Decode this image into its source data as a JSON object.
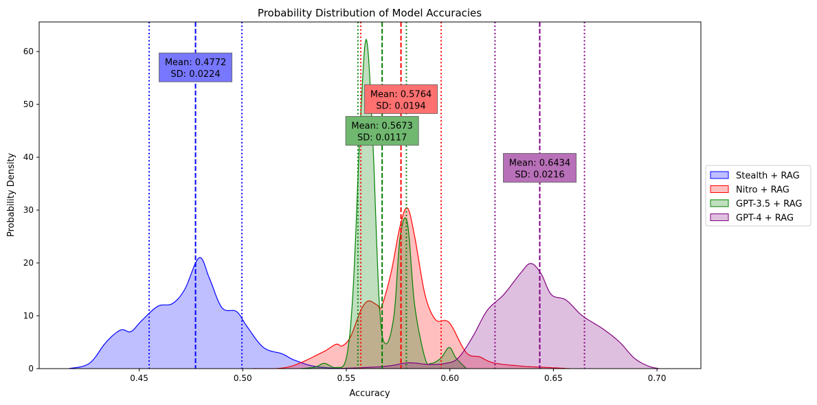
{
  "chart_data": {
    "type": "area",
    "title": "Probability Distribution of Model Accuracies",
    "xlabel": "Accuracy",
    "ylabel": "Probability Density",
    "xlim": [
      0.4017,
      0.7212
    ],
    "ylim": [
      0,
      65.6
    ],
    "xticks": [
      "0.45",
      "0.50",
      "0.55",
      "0.60",
      "0.65",
      "0.70"
    ],
    "yticks": [
      "0",
      "10",
      "20",
      "30",
      "40",
      "50",
      "60"
    ],
    "grid": false,
    "legend_position": "right-outside",
    "series": [
      {
        "name": "Stealth + RAG",
        "color": "#0000ff",
        "fill": "#bfbfff",
        "mean_label": "Mean: 0.4772",
        "sd_label": "SD: 0.0224",
        "mean": 0.4772,
        "sd": 0.0224,
        "box_color": "#7777ff",
        "points": [
          [
            0.416,
            0
          ],
          [
            0.426,
            1
          ],
          [
            0.434,
            5
          ],
          [
            0.441,
            7.3
          ],
          [
            0.446,
            7
          ],
          [
            0.451,
            9
          ],
          [
            0.459,
            11.8
          ],
          [
            0.466,
            12.3
          ],
          [
            0.472,
            15
          ],
          [
            0.479,
            21
          ],
          [
            0.484,
            17
          ],
          [
            0.49,
            11.5
          ],
          [
            0.497,
            10.8
          ],
          [
            0.502,
            8
          ],
          [
            0.51,
            4
          ],
          [
            0.519,
            2.8
          ],
          [
            0.525,
            1.6
          ],
          [
            0.535,
            0.4
          ],
          [
            0.548,
            0
          ]
        ]
      },
      {
        "name": "Nitro + RAG",
        "color": "#ff0000",
        "fill": "#ffbfbf",
        "mean_label": "Mean: 0.5764",
        "sd_label": "SD: 0.0194",
        "mean": 0.5764,
        "sd": 0.0194,
        "box_color": "#ff7070",
        "points": [
          [
            0.505,
            0
          ],
          [
            0.522,
            0.3
          ],
          [
            0.538,
            3
          ],
          [
            0.545,
            4.6
          ],
          [
            0.548,
            4.3
          ],
          [
            0.552,
            6
          ],
          [
            0.557,
            11
          ],
          [
            0.5606,
            12.8
          ],
          [
            0.565,
            12
          ],
          [
            0.567,
            11.7
          ],
          [
            0.5715,
            18
          ],
          [
            0.576,
            27
          ],
          [
            0.5795,
            30.4
          ],
          [
            0.583,
            25
          ],
          [
            0.588,
            14
          ],
          [
            0.593,
            9.3
          ],
          [
            0.598,
            9.1
          ],
          [
            0.601,
            8
          ],
          [
            0.608,
            3
          ],
          [
            0.6146,
            2.2
          ],
          [
            0.621,
            1.1
          ],
          [
            0.634,
            0.5
          ],
          [
            0.648,
            0.2
          ],
          [
            0.658,
            0
          ]
        ]
      },
      {
        "name": "GPT-3.5 + RAG",
        "color": "#008000",
        "fill": "#bfdfbf",
        "mean_label": "Mean: 0.5673",
        "sd_label": "SD: 0.0117",
        "mean": 0.5673,
        "sd": 0.0117,
        "box_color": "#70b870",
        "points": [
          [
            0.528,
            0
          ],
          [
            0.535,
            0.3
          ],
          [
            0.5394,
            1.0
          ],
          [
            0.545,
            0.2
          ],
          [
            0.55,
            2
          ],
          [
            0.5533,
            15
          ],
          [
            0.5566,
            45
          ],
          [
            0.5596,
            62.3
          ],
          [
            0.5626,
            45
          ],
          [
            0.566,
            12
          ],
          [
            0.569,
            4.7
          ],
          [
            0.573,
            10
          ],
          [
            0.576,
            25
          ],
          [
            0.5795,
            27.6
          ],
          [
            0.583,
            12
          ],
          [
            0.588,
            2
          ],
          [
            0.591,
            1
          ],
          [
            0.5957,
            2
          ],
          [
            0.5997,
            4
          ],
          [
            0.603,
            2
          ],
          [
            0.608,
            0
          ]
        ]
      },
      {
        "name": "GPT-4 + RAG",
        "color": "#800080",
        "fill": "#dfbfdf",
        "mean_label": "Mean: 0.6434",
        "sd_label": "SD: 0.0216",
        "mean": 0.6434,
        "sd": 0.0216,
        "box_color": "#b870b8",
        "points": [
          [
            0.545,
            0
          ],
          [
            0.568,
            0.4
          ],
          [
            0.5798,
            1.1
          ],
          [
            0.5897,
            0.8
          ],
          [
            0.598,
            1
          ],
          [
            0.604,
            2
          ],
          [
            0.611,
            6
          ],
          [
            0.618,
            11
          ],
          [
            0.626,
            14
          ],
          [
            0.634,
            18
          ],
          [
            0.639,
            19.9
          ],
          [
            0.644,
            18
          ],
          [
            0.649,
            14
          ],
          [
            0.656,
            13
          ],
          [
            0.664,
            10
          ],
          [
            0.674,
            7.5
          ],
          [
            0.682,
            5
          ],
          [
            0.689,
            2
          ],
          [
            0.6957,
            0.5
          ],
          [
            0.701,
            0
          ]
        ]
      }
    ]
  }
}
